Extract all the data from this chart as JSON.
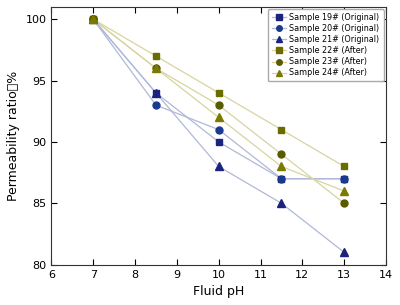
{
  "series": [
    {
      "label": "Sample 19# (Original)",
      "x": [
        7,
        8.5,
        10,
        11.5,
        13
      ],
      "y": [
        100,
        94,
        90,
        87,
        87
      ],
      "marker_color": "#1a237e",
      "marker": "s",
      "line_color": "#b0b8d8"
    },
    {
      "label": "Sample 20# (Original)",
      "x": [
        7,
        8.5,
        10,
        11.5,
        13
      ],
      "y": [
        100,
        93,
        91,
        87,
        87
      ],
      "marker_color": "#1a3a8f",
      "marker": "o",
      "line_color": "#b0b8d8"
    },
    {
      "label": "Sample 21# (Original)",
      "x": [
        7,
        8.5,
        10,
        11.5,
        13
      ],
      "y": [
        100,
        94,
        88,
        85,
        81
      ],
      "marker_color": "#1a237e",
      "marker": "^",
      "line_color": "#b0b8d8"
    },
    {
      "label": "Sample 22# (After)",
      "x": [
        7,
        8.5,
        10,
        11.5,
        13
      ],
      "y": [
        100,
        97,
        94,
        91,
        88
      ],
      "marker_color": "#6b6b00",
      "marker": "s",
      "line_color": "#d8d4a0"
    },
    {
      "label": "Sample 23# (After)",
      "x": [
        7,
        8.5,
        10,
        11.5,
        13
      ],
      "y": [
        100,
        96,
        93,
        89,
        85
      ],
      "marker_color": "#5a5a00",
      "marker": "o",
      "line_color": "#d8d4a0"
    },
    {
      "label": "Sample 24# (After)",
      "x": [
        7,
        8.5,
        10,
        11.5,
        13
      ],
      "y": [
        100,
        96,
        92,
        88,
        86
      ],
      "marker_color": "#7a7a00",
      "marker": "^",
      "line_color": "#d8d4a0"
    }
  ],
  "xlabel": "Fluid pH",
  "ylabel": "Permeability ratio，%",
  "xlim": [
    6,
    14
  ],
  "ylim": [
    80,
    101
  ],
  "xticks": [
    6,
    7,
    8,
    9,
    10,
    11,
    12,
    13,
    14
  ],
  "yticks": [
    80,
    85,
    90,
    95,
    100
  ],
  "background_color": "#ffffff",
  "figsize": [
    4.0,
    3.05
  ],
  "dpi": 100
}
